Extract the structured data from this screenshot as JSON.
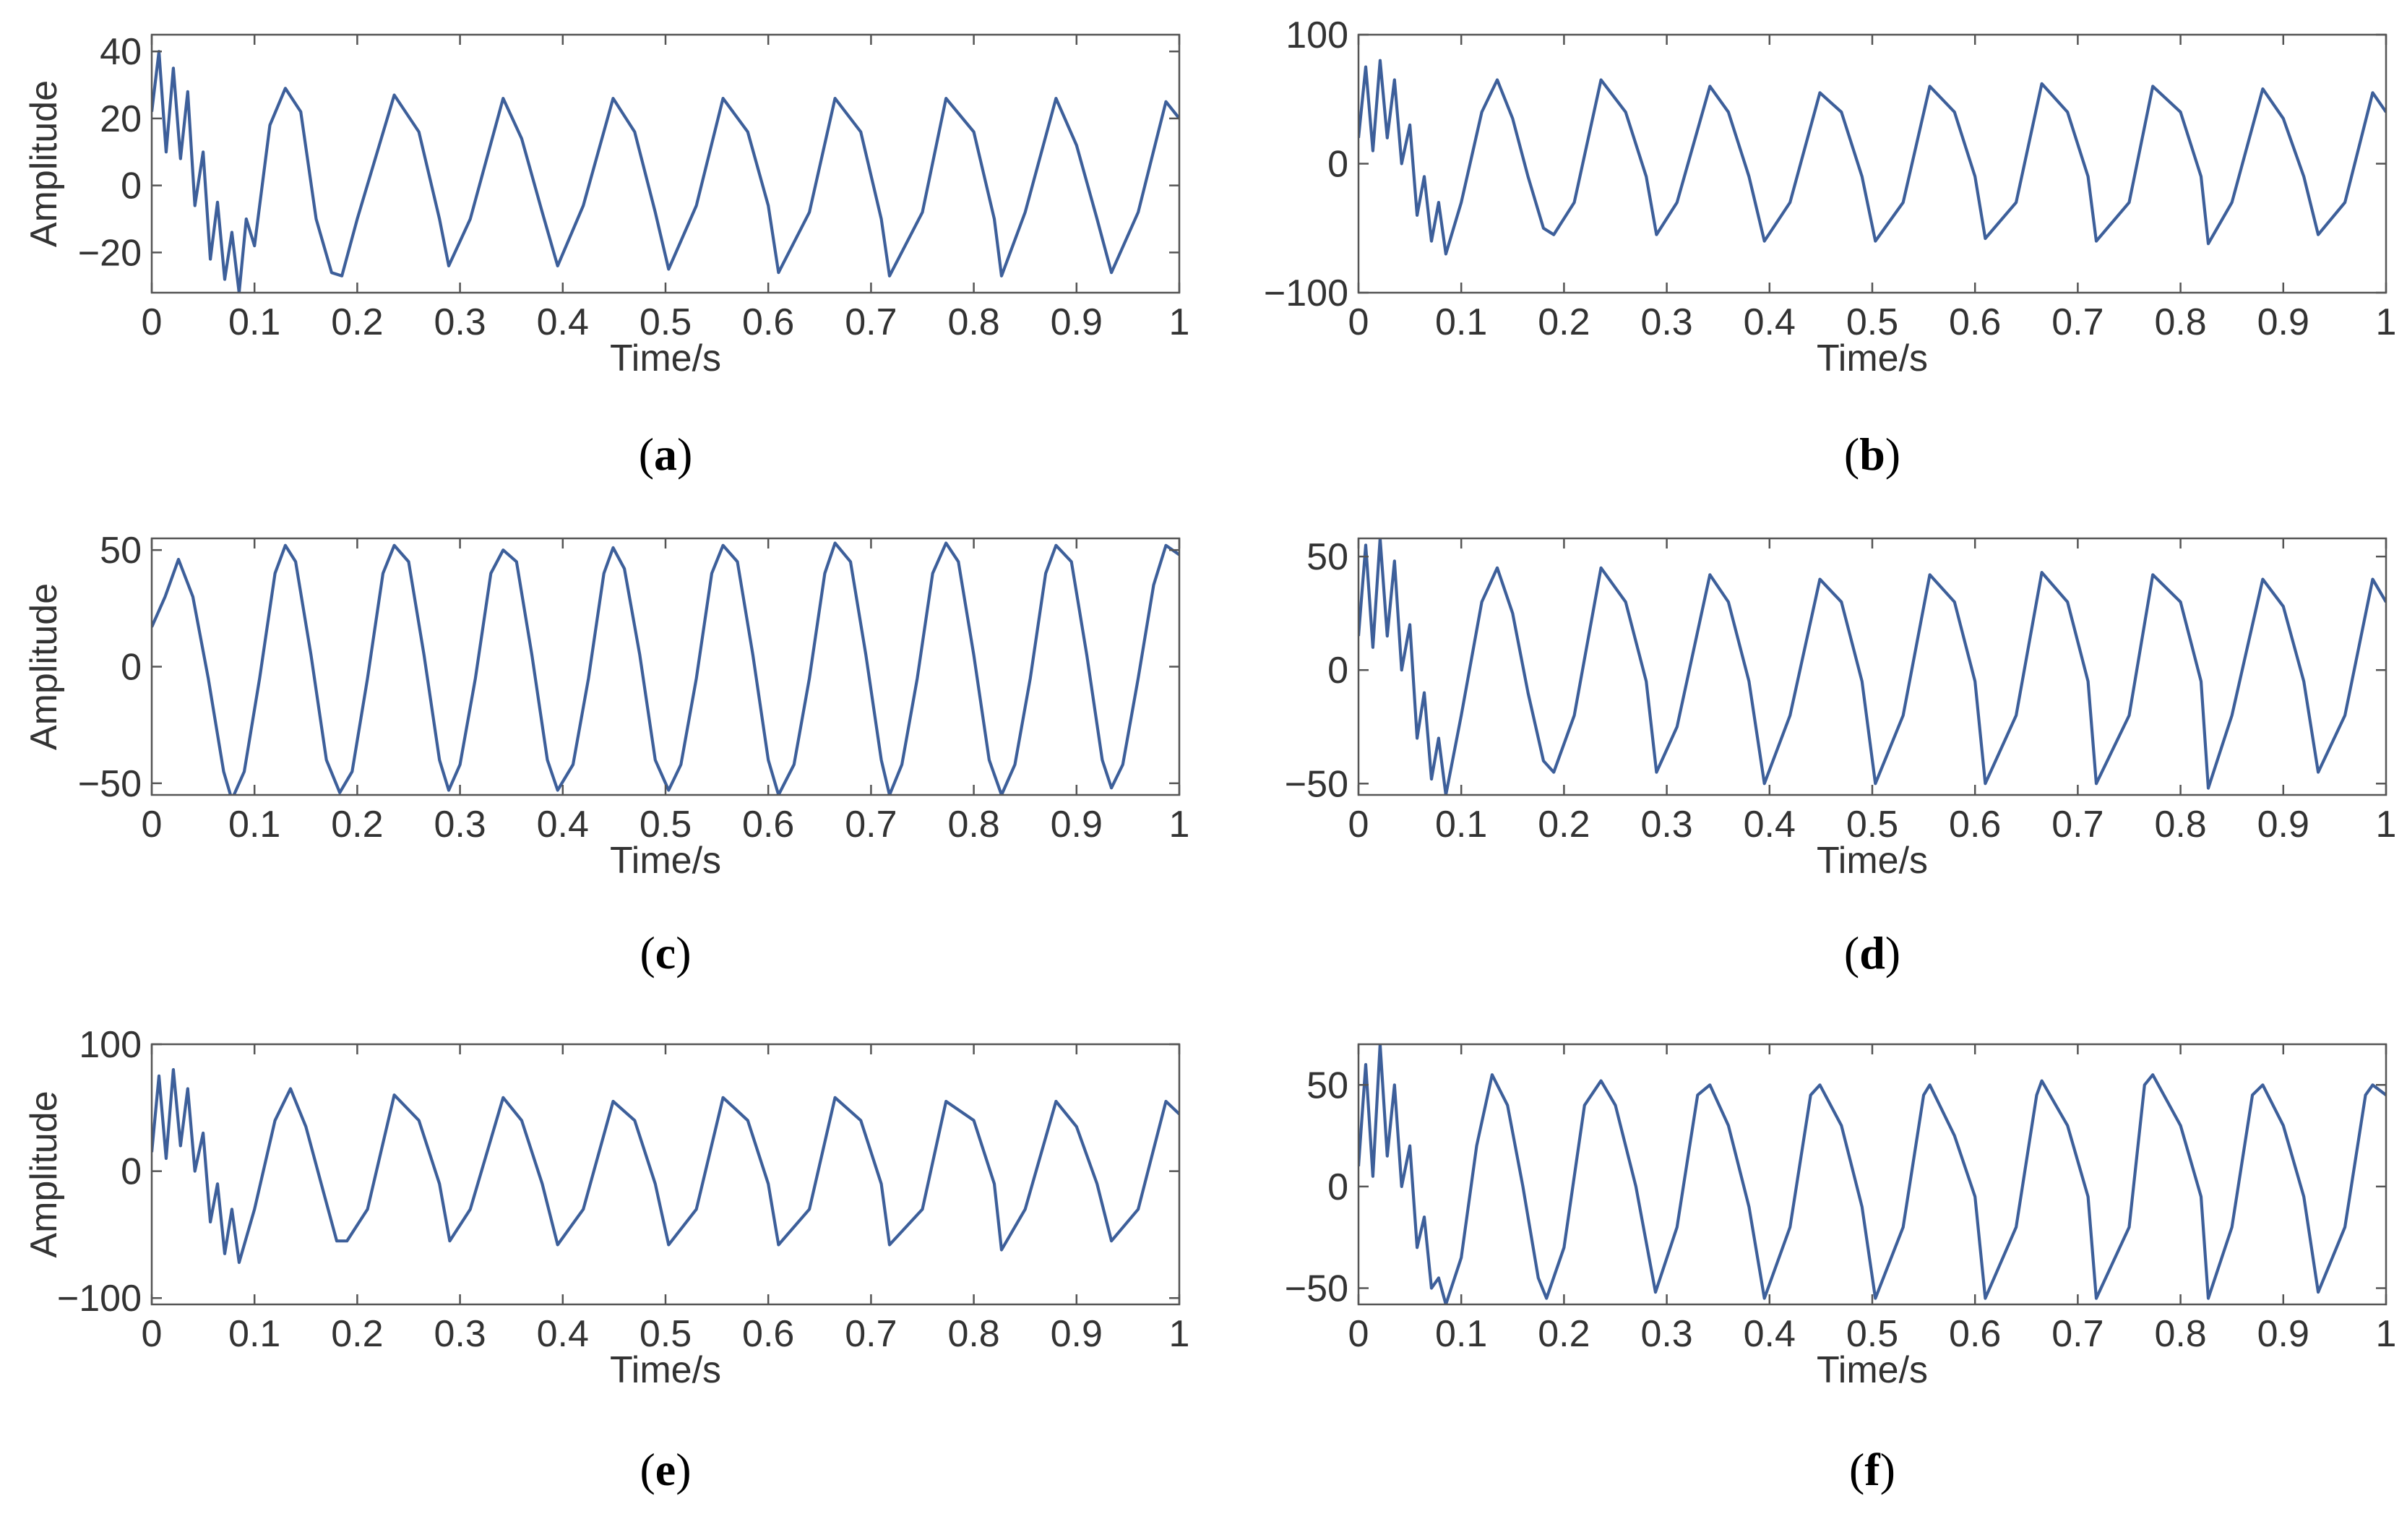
{
  "line_color": "#3d5f9a",
  "axis_color": "#555555",
  "text_color": "#333333",
  "chart_data": [
    {
      "id": "a",
      "type": "line",
      "caption_letter": "a",
      "xlabel": "Time/s",
      "ylabel": "Amplitude",
      "xlim": [
        0,
        1
      ],
      "ylim": [
        -32,
        45
      ],
      "xticks": [
        "0",
        "0.1",
        "0.2",
        "0.3",
        "0.4",
        "0.5",
        "0.6",
        "0.7",
        "0.8",
        "0.9",
        "1"
      ],
      "yticks": [
        {
          "value": 40,
          "label": "40"
        },
        {
          "value": 20,
          "label": "20"
        },
        {
          "value": 0,
          "label": "0"
        },
        {
          "value": -20,
          "label": "−20"
        }
      ],
      "x": [
        0,
        0.007,
        0.014,
        0.021,
        0.028,
        0.035,
        0.042,
        0.05,
        0.057,
        0.064,
        0.071,
        0.078,
        0.085,
        0.092,
        0.1,
        0.115,
        0.13,
        0.145,
        0.16,
        0.175,
        0.185,
        0.2,
        0.236,
        0.26,
        0.28,
        0.289,
        0.31,
        0.342,
        0.36,
        0.38,
        0.395,
        0.42,
        0.449,
        0.47,
        0.49,
        0.503,
        0.53,
        0.556,
        0.58,
        0.6,
        0.61,
        0.64,
        0.665,
        0.69,
        0.71,
        0.718,
        0.75,
        0.773,
        0.8,
        0.82,
        0.827,
        0.85,
        0.88,
        0.9,
        0.92,
        0.934,
        0.96,
        0.987,
        1
      ],
      "values": [
        22,
        40,
        10,
        35,
        8,
        28,
        -6,
        10,
        -22,
        -5,
        -28,
        -14,
        -32,
        -10,
        -18,
        18,
        29,
        22,
        -10,
        -26,
        -27,
        -10,
        27,
        16,
        -10,
        -24,
        -10,
        26,
        14,
        -8,
        -24,
        -6,
        26,
        16,
        -8,
        -25,
        -6,
        26,
        16,
        -6,
        -26,
        -8,
        26,
        16,
        -10,
        -27,
        -8,
        26,
        16,
        -10,
        -27,
        -8,
        26,
        12,
        -10,
        -26,
        -8,
        25,
        20
      ],
      "series_names": []
    },
    {
      "id": "b",
      "type": "line",
      "caption_letter": "b",
      "xlabel": "Time/s",
      "ylabel": "",
      "xlim": [
        0,
        1
      ],
      "ylim": [
        -100,
        100
      ],
      "xticks": [
        "0",
        "0.1",
        "0.2",
        "0.3",
        "0.4",
        "0.5",
        "0.6",
        "0.7",
        "0.8",
        "0.9",
        "1"
      ],
      "yticks": [
        {
          "value": 100,
          "label": "100"
        },
        {
          "value": 0,
          "label": "0"
        },
        {
          "value": -100,
          "label": "−100"
        }
      ],
      "x": [
        0,
        0.007,
        0.014,
        0.021,
        0.028,
        0.035,
        0.042,
        0.05,
        0.057,
        0.064,
        0.071,
        0.078,
        0.085,
        0.1,
        0.12,
        0.135,
        0.15,
        0.165,
        0.18,
        0.19,
        0.21,
        0.236,
        0.26,
        0.28,
        0.29,
        0.31,
        0.342,
        0.36,
        0.38,
        0.395,
        0.42,
        0.449,
        0.47,
        0.49,
        0.503,
        0.53,
        0.556,
        0.58,
        0.6,
        0.61,
        0.64,
        0.665,
        0.69,
        0.71,
        0.718,
        0.75,
        0.773,
        0.8,
        0.82,
        0.827,
        0.85,
        0.88,
        0.9,
        0.92,
        0.934,
        0.96,
        0.987,
        1
      ],
      "values": [
        20,
        75,
        10,
        80,
        20,
        65,
        0,
        30,
        -40,
        -10,
        -60,
        -30,
        -70,
        -30,
        40,
        65,
        35,
        -10,
        -50,
        -55,
        -30,
        65,
        40,
        -10,
        -55,
        -30,
        60,
        40,
        -10,
        -60,
        -30,
        55,
        40,
        -10,
        -60,
        -30,
        60,
        40,
        -10,
        -58,
        -30,
        62,
        40,
        -10,
        -60,
        -30,
        60,
        40,
        -10,
        -62,
        -30,
        58,
        35,
        -10,
        -55,
        -30,
        55,
        40
      ],
      "series_names": []
    },
    {
      "id": "c",
      "type": "line",
      "caption_letter": "c",
      "xlabel": "Time/s",
      "ylabel": "Amplitude",
      "xlim": [
        0,
        1
      ],
      "ylim": [
        -55,
        55
      ],
      "xticks": [
        "0",
        "0.1",
        "0.2",
        "0.3",
        "0.4",
        "0.5",
        "0.6",
        "0.7",
        "0.8",
        "0.9",
        "1"
      ],
      "yticks": [
        {
          "value": 50,
          "label": "50"
        },
        {
          "value": 0,
          "label": "0"
        },
        {
          "value": -50,
          "label": "−50"
        }
      ],
      "x": [
        0,
        0.013,
        0.026,
        0.04,
        0.055,
        0.07,
        0.078,
        0.09,
        0.105,
        0.12,
        0.13,
        0.14,
        0.155,
        0.17,
        0.183,
        0.195,
        0.21,
        0.225,
        0.236,
        0.25,
        0.265,
        0.28,
        0.289,
        0.3,
        0.315,
        0.33,
        0.342,
        0.355,
        0.37,
        0.385,
        0.395,
        0.41,
        0.425,
        0.44,
        0.449,
        0.46,
        0.475,
        0.49,
        0.503,
        0.515,
        0.53,
        0.545,
        0.556,
        0.57,
        0.585,
        0.6,
        0.61,
        0.625,
        0.64,
        0.655,
        0.665,
        0.68,
        0.695,
        0.71,
        0.718,
        0.73,
        0.745,
        0.76,
        0.773,
        0.785,
        0.8,
        0.815,
        0.827,
        0.84,
        0.855,
        0.87,
        0.88,
        0.895,
        0.91,
        0.925,
        0.934,
        0.945,
        0.96,
        0.975,
        0.987,
        1
      ],
      "values": [
        17,
        30,
        46,
        30,
        -5,
        -45,
        -57,
        -45,
        -5,
        40,
        52,
        45,
        5,
        -40,
        -54,
        -45,
        -5,
        40,
        52,
        45,
        5,
        -40,
        -53,
        -42,
        -5,
        40,
        50,
        45,
        5,
        -40,
        -53,
        -42,
        -5,
        40,
        51,
        42,
        5,
        -40,
        -53,
        -42,
        -5,
        40,
        52,
        45,
        5,
        -40,
        -55,
        -42,
        -5,
        40,
        53,
        45,
        5,
        -40,
        -55,
        -42,
        -5,
        40,
        53,
        45,
        5,
        -40,
        -55,
        -42,
        -5,
        40,
        52,
        45,
        5,
        -40,
        -52,
        -42,
        -5,
        35,
        52,
        48
      ],
      "series_names": []
    },
    {
      "id": "d",
      "type": "line",
      "caption_letter": "d",
      "xlabel": "Time/s",
      "ylabel": "",
      "xlim": [
        0,
        1
      ],
      "ylim": [
        -55,
        58
      ],
      "xticks": [
        "0",
        "0.1",
        "0.2",
        "0.3",
        "0.4",
        "0.5",
        "0.6",
        "0.7",
        "0.8",
        "0.9",
        "1"
      ],
      "yticks": [
        {
          "value": 50,
          "label": "50"
        },
        {
          "value": 0,
          "label": "0"
        },
        {
          "value": -50,
          "label": "−50"
        }
      ],
      "x": [
        0,
        0.007,
        0.014,
        0.021,
        0.028,
        0.035,
        0.042,
        0.05,
        0.057,
        0.064,
        0.071,
        0.078,
        0.085,
        0.1,
        0.12,
        0.135,
        0.15,
        0.165,
        0.18,
        0.19,
        0.21,
        0.236,
        0.26,
        0.28,
        0.29,
        0.31,
        0.342,
        0.36,
        0.38,
        0.395,
        0.42,
        0.449,
        0.47,
        0.49,
        0.503,
        0.53,
        0.556,
        0.58,
        0.6,
        0.61,
        0.64,
        0.665,
        0.69,
        0.71,
        0.718,
        0.75,
        0.773,
        0.8,
        0.82,
        0.827,
        0.85,
        0.88,
        0.9,
        0.92,
        0.934,
        0.96,
        0.987,
        1
      ],
      "values": [
        15,
        55,
        10,
        58,
        15,
        48,
        0,
        20,
        -30,
        -10,
        -48,
        -30,
        -55,
        -20,
        30,
        45,
        25,
        -10,
        -40,
        -45,
        -20,
        45,
        30,
        -5,
        -45,
        -25,
        42,
        30,
        -5,
        -50,
        -20,
        40,
        30,
        -5,
        -50,
        -20,
        42,
        30,
        -5,
        -50,
        -20,
        43,
        30,
        -5,
        -50,
        -20,
        42,
        30,
        -5,
        -52,
        -20,
        40,
        28,
        -5,
        -45,
        -20,
        40,
        30
      ],
      "series_names": []
    },
    {
      "id": "e",
      "type": "line",
      "caption_letter": "e",
      "xlabel": "Time/s",
      "ylabel": "Amplitude",
      "xlim": [
        0,
        1
      ],
      "ylim": [
        -105,
        100
      ],
      "xticks": [
        "0",
        "0.1",
        "0.2",
        "0.3",
        "0.4",
        "0.5",
        "0.6",
        "0.7",
        "0.8",
        "0.9",
        "1"
      ],
      "yticks": [
        {
          "value": 100,
          "label": "100"
        },
        {
          "value": 0,
          "label": "0"
        },
        {
          "value": -100,
          "label": "−100"
        }
      ],
      "x": [
        0,
        0.007,
        0.014,
        0.021,
        0.028,
        0.035,
        0.042,
        0.05,
        0.057,
        0.064,
        0.071,
        0.078,
        0.085,
        0.1,
        0.12,
        0.135,
        0.15,
        0.165,
        0.18,
        0.19,
        0.21,
        0.236,
        0.26,
        0.28,
        0.29,
        0.31,
        0.342,
        0.36,
        0.38,
        0.395,
        0.42,
        0.449,
        0.47,
        0.49,
        0.503,
        0.53,
        0.556,
        0.58,
        0.6,
        0.61,
        0.64,
        0.665,
        0.69,
        0.71,
        0.718,
        0.75,
        0.773,
        0.8,
        0.82,
        0.827,
        0.85,
        0.88,
        0.9,
        0.92,
        0.934,
        0.96,
        0.987,
        1
      ],
      "values": [
        15,
        75,
        10,
        80,
        20,
        65,
        0,
        30,
        -40,
        -10,
        -65,
        -30,
        -72,
        -30,
        40,
        65,
        35,
        -10,
        -55,
        -55,
        -30,
        60,
        40,
        -10,
        -55,
        -30,
        58,
        40,
        -10,
        -58,
        -30,
        55,
        40,
        -10,
        -58,
        -30,
        58,
        40,
        -10,
        -58,
        -30,
        58,
        40,
        -10,
        -58,
        -30,
        55,
        40,
        -10,
        -62,
        -30,
        55,
        35,
        -10,
        -55,
        -30,
        55,
        45
      ],
      "series_names": []
    },
    {
      "id": "f",
      "type": "line",
      "caption_letter": "f",
      "xlabel": "Time/s",
      "ylabel": "",
      "xlim": [
        0,
        1
      ],
      "ylim": [
        -58,
        70
      ],
      "xticks": [
        "0",
        "0.1",
        "0.2",
        "0.3",
        "0.4",
        "0.5",
        "0.6",
        "0.7",
        "0.8",
        "0.9",
        "1"
      ],
      "yticks": [
        {
          "value": 50,
          "label": "50"
        },
        {
          "value": 0,
          "label": "0"
        },
        {
          "value": -50,
          "label": "−50"
        }
      ],
      "x": [
        0,
        0.007,
        0.014,
        0.021,
        0.028,
        0.035,
        0.042,
        0.05,
        0.057,
        0.064,
        0.071,
        0.078,
        0.085,
        0.1,
        0.115,
        0.13,
        0.145,
        0.16,
        0.175,
        0.183,
        0.2,
        0.22,
        0.236,
        0.25,
        0.27,
        0.289,
        0.31,
        0.33,
        0.342,
        0.36,
        0.38,
        0.395,
        0.42,
        0.44,
        0.449,
        0.47,
        0.49,
        0.503,
        0.53,
        0.55,
        0.556,
        0.58,
        0.6,
        0.61,
        0.64,
        0.66,
        0.665,
        0.69,
        0.71,
        0.718,
        0.75,
        0.765,
        0.773,
        0.8,
        0.82,
        0.827,
        0.85,
        0.87,
        0.88,
        0.9,
        0.92,
        0.934,
        0.96,
        0.98,
        0.987,
        1
      ],
      "values": [
        10,
        60,
        5,
        70,
        15,
        50,
        0,
        20,
        -30,
        -15,
        -50,
        -45,
        -58,
        -35,
        20,
        55,
        40,
        0,
        -45,
        -55,
        -30,
        40,
        52,
        40,
        0,
        -52,
        -20,
        45,
        50,
        30,
        -10,
        -55,
        -20,
        45,
        50,
        30,
        -10,
        -55,
        -20,
        45,
        50,
        25,
        -5,
        -55,
        -20,
        45,
        52,
        30,
        -5,
        -55,
        -20,
        50,
        55,
        30,
        -5,
        -55,
        -20,
        45,
        50,
        30,
        -5,
        -52,
        -20,
        45,
        50,
        45
      ],
      "series_names": []
    }
  ]
}
